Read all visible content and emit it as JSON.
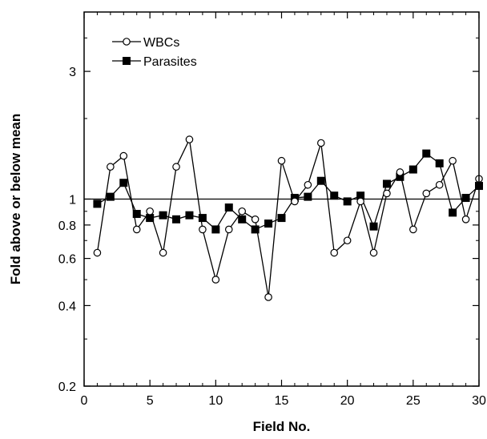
{
  "chart_data": {
    "type": "line",
    "title": "",
    "xlabel": "Field No.",
    "ylabel": "Fold above or below mean",
    "xlim": [
      0,
      30
    ],
    "ylim": [
      0.2,
      5
    ],
    "y_scale": "log",
    "x_ticks": [
      "0",
      "5",
      "10",
      "15",
      "20",
      "25",
      "30"
    ],
    "y_ticks": [
      {
        "value": 0.2,
        "label": "0.2"
      },
      {
        "value": 0.4,
        "label": "0.4"
      },
      {
        "value": 0.6,
        "label": "0.6"
      },
      {
        "value": 0.8,
        "label": "0.8"
      },
      {
        "value": 1,
        "label": "1"
      },
      {
        "value": 3,
        "label": "3"
      }
    ],
    "reference_line": 1,
    "legend_position": "top-left",
    "series": [
      {
        "name": "WBCs",
        "marker": "open-circle",
        "x": [
          1,
          2,
          3,
          4,
          5,
          6,
          7,
          8,
          9,
          10,
          11,
          12,
          13,
          14,
          15,
          16,
          17,
          18,
          19,
          20,
          21,
          22,
          23,
          24,
          25,
          26,
          27,
          28,
          29,
          30
        ],
        "values": [
          0.63,
          1.32,
          1.45,
          0.77,
          0.9,
          0.63,
          1.32,
          1.67,
          0.77,
          0.5,
          0.77,
          0.9,
          0.84,
          0.43,
          1.39,
          0.98,
          1.13,
          1.62,
          0.63,
          0.7,
          0.98,
          0.63,
          1.05,
          1.26,
          0.77,
          1.05,
          1.13,
          1.39,
          0.84,
          1.19
        ]
      },
      {
        "name": "Parasites",
        "marker": "filled-square",
        "x": [
          1,
          2,
          3,
          4,
          5,
          6,
          7,
          8,
          9,
          10,
          11,
          12,
          13,
          14,
          15,
          16,
          17,
          18,
          19,
          20,
          21,
          22,
          23,
          24,
          25,
          26,
          27,
          28,
          29,
          30
        ],
        "values": [
          0.96,
          1.02,
          1.15,
          0.88,
          0.85,
          0.87,
          0.84,
          0.87,
          0.85,
          0.77,
          0.93,
          0.84,
          0.77,
          0.81,
          0.85,
          1.01,
          1.02,
          1.17,
          1.03,
          0.98,
          1.03,
          0.79,
          1.14,
          1.21,
          1.29,
          1.48,
          1.36,
          0.89,
          1.01,
          1.12
        ]
      }
    ]
  }
}
